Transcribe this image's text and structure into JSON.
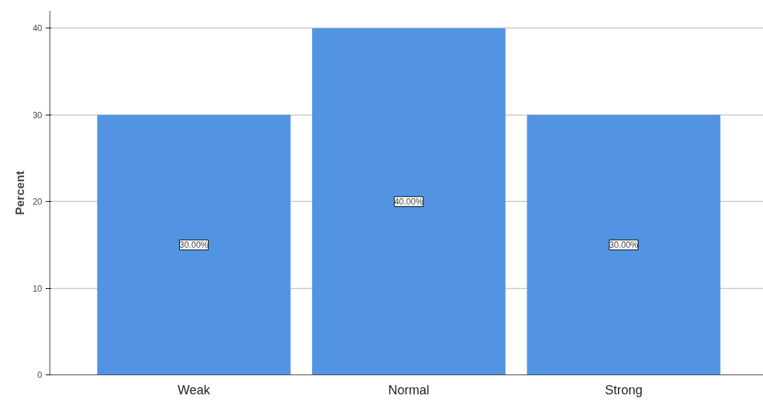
{
  "chart_data": {
    "type": "bar",
    "ylabel": "Percent",
    "categories": [
      "Weak",
      "Normal",
      "Strong"
    ],
    "values": [
      30,
      40,
      30
    ],
    "value_labels": [
      "30.00%",
      "40.00%",
      "30.00%"
    ],
    "color": "#5294e2",
    "ylim": [
      0,
      42
    ],
    "yticks": [
      0,
      10,
      20,
      30,
      40
    ],
    "grid": "y"
  }
}
